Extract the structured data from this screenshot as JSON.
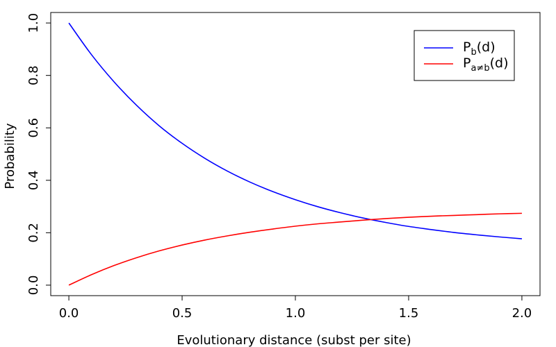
{
  "chart_data": {
    "type": "line",
    "xlabel": "Evolutionary distance (subst per site)",
    "ylabel": "Probability",
    "xlim": [
      -0.08,
      2.08
    ],
    "ylim": [
      -0.04,
      1.04
    ],
    "x_ticks": [
      "0.0",
      "0.5",
      "1.0",
      "1.5",
      "2.0"
    ],
    "y_ticks": [
      "0.0",
      "0.2",
      "0.4",
      "0.6",
      "0.8",
      "1.0"
    ],
    "legend_position": "top-right",
    "x": [
      0.0,
      0.1,
      0.2,
      0.3,
      0.4,
      0.5,
      0.6,
      0.7,
      0.8,
      0.9,
      1.0,
      1.1,
      1.2,
      1.3,
      1.4,
      1.5,
      1.6,
      1.7,
      1.8,
      1.9,
      2.0
    ],
    "series": [
      {
        "name_main": "P",
        "name_sub": "b",
        "name_tail": "(d)",
        "color": "#0000ff",
        "values": [
          1.0,
          0.879,
          0.775,
          0.685,
          0.607,
          0.541,
          0.484,
          0.435,
          0.393,
          0.357,
          0.326,
          0.299,
          0.276,
          0.256,
          0.239,
          0.224,
          0.212,
          0.201,
          0.192,
          0.184,
          0.177
        ]
      },
      {
        "name_main": "P",
        "name_sub": "a≠b",
        "name_tail": "(d)",
        "color": "#ff0000",
        "values": [
          0.0,
          0.04,
          0.075,
          0.105,
          0.131,
          0.153,
          0.172,
          0.188,
          0.202,
          0.214,
          0.225,
          0.234,
          0.241,
          0.248,
          0.254,
          0.259,
          0.263,
          0.266,
          0.269,
          0.272,
          0.274
        ]
      }
    ]
  }
}
